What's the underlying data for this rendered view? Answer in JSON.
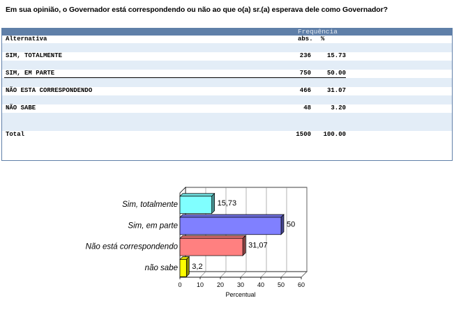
{
  "question": "Em sua opinião, o Governador está correspondendo ou não ao que o(a) sr.(a) esperava dele como Governador?",
  "table": {
    "freq_header": "Frequência",
    "col_alt": "Alternativa",
    "col_abs": "abs.",
    "col_pct": "%",
    "rows": [
      {
        "label": "SIM, TOTALMENTE",
        "abs": "236",
        "pct": "15.73"
      },
      {
        "label": "SIM, EM PARTE",
        "abs": "750",
        "pct": "50.00"
      },
      {
        "label": "NÃO ESTA CORRESPONDENDO",
        "abs": "466",
        "pct": "31.07"
      },
      {
        "label": "NÃO SABE",
        "abs": "48",
        "pct": "3.20"
      }
    ],
    "total": {
      "label": "Total",
      "abs": "1500",
      "pct": "100.00"
    }
  },
  "chart_data": {
    "type": "bar",
    "orientation": "horizontal",
    "categories": [
      "Sim, totalmente",
      "Sim, em parte",
      "Não está correspondendo",
      "não sabe"
    ],
    "values": [
      15.73,
      50,
      31.07,
      3.2
    ],
    "value_labels": [
      "15,73",
      "50",
      "31,07",
      "3,2"
    ],
    "colors": [
      "#80ffff",
      "#8080ff",
      "#ff8080",
      "#ffff00"
    ],
    "xlabel": "Percentual",
    "xlim": [
      0,
      60
    ],
    "xticks": [
      "0",
      "10",
      "20",
      "30",
      "40",
      "50",
      "60"
    ],
    "grid": true,
    "style": "3d"
  }
}
